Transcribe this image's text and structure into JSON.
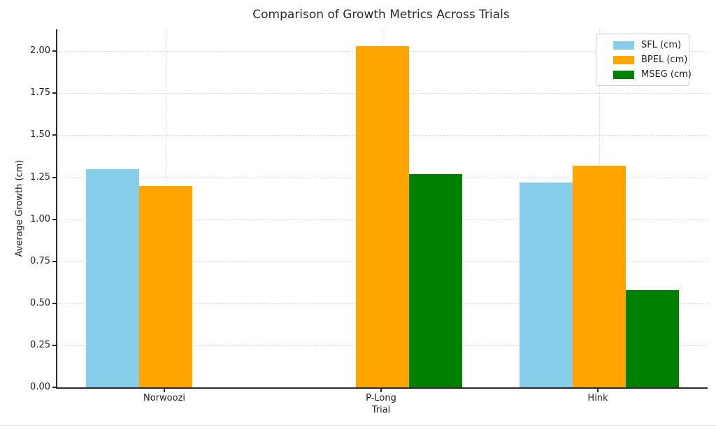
{
  "window": {
    "background": "#ffffff"
  },
  "chart_data": {
    "type": "bar",
    "title": "Comparison of Growth Metrics Across Trials",
    "xlabel": "Trial",
    "ylabel": "Average Growth (cm)",
    "categories": [
      "Norwoozi",
      "P-Long",
      "Hink"
    ],
    "series": [
      {
        "name": "SFL (cm)",
        "color": "#87CEEB",
        "values": [
          1.3,
          0,
          1.22
        ]
      },
      {
        "name": "BPEL (cm)",
        "color": "#FFA500",
        "values": [
          1.2,
          2.03,
          1.32
        ]
      },
      {
        "name": "MSEG (cm)",
        "color": "#008000",
        "values": [
          0,
          1.27,
          0.58
        ]
      }
    ],
    "yticks": [
      "0.00",
      "0.25",
      "0.50",
      "0.75",
      "1.00",
      "1.25",
      "1.50",
      "1.75",
      "2.00"
    ],
    "ytick_values": [
      0,
      0.25,
      0.5,
      0.75,
      1.0,
      1.25,
      1.5,
      1.75,
      2.0
    ],
    "ylim": [
      0,
      2.13
    ],
    "grid": {
      "visible": true,
      "style": "dashed",
      "color": "#d9d9d9"
    },
    "legend": {
      "position": "upper-right"
    }
  }
}
